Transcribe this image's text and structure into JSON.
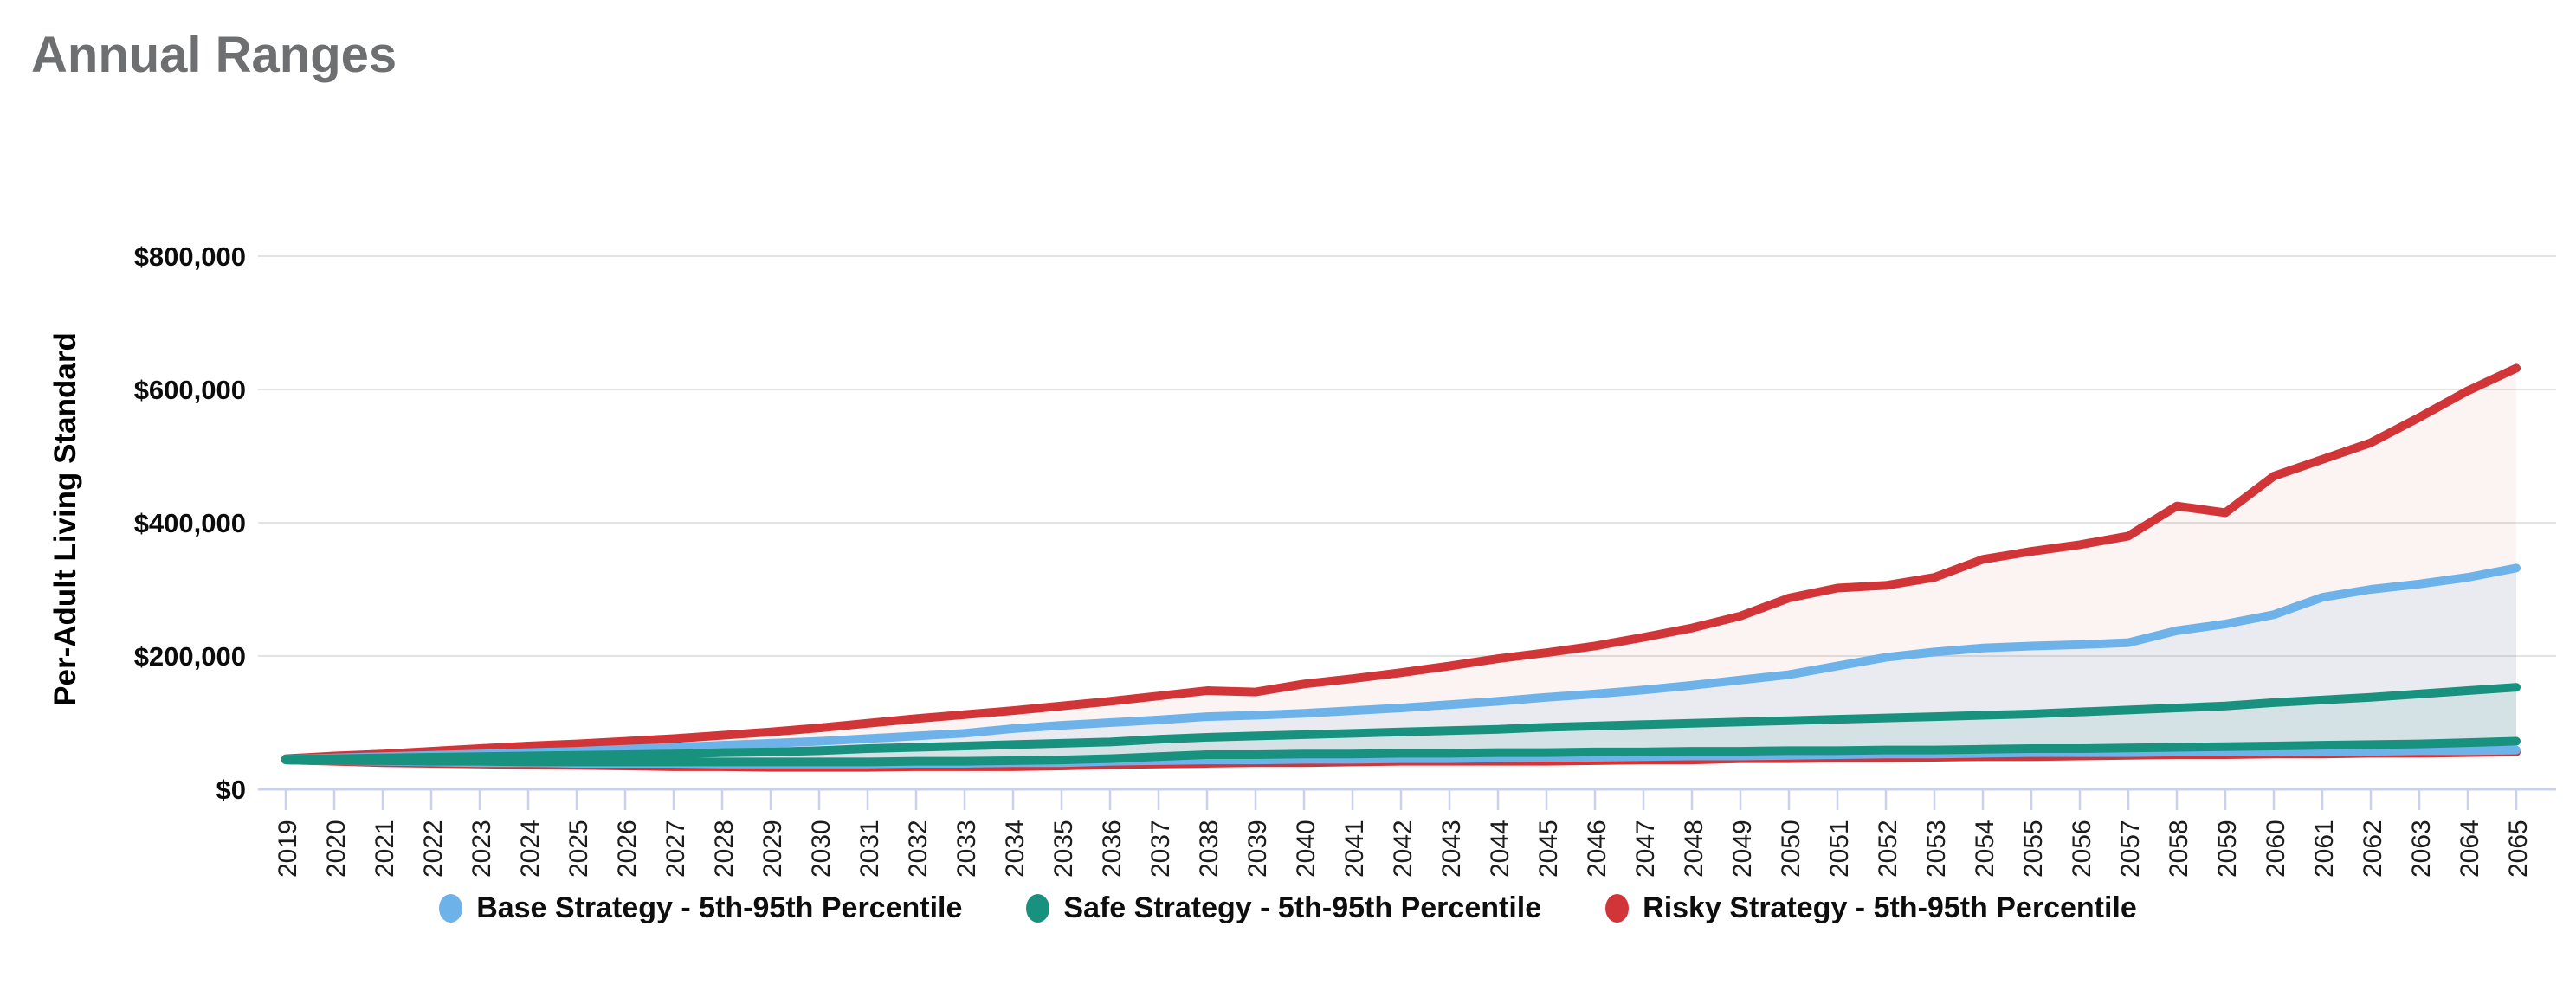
{
  "page": {
    "title": "Annual Ranges"
  },
  "chart_data": {
    "type": "area",
    "title": "Annual Ranges",
    "ylabel": "Per-Adult Living Standard",
    "xlabel": "",
    "ylim": [
      0,
      800000
    ],
    "grid": "horizontal",
    "legend_position": "bottom",
    "axis_color": "#c9d1ec",
    "grid_color": "#e3e3e3",
    "ytick_values": [
      0,
      200000,
      400000,
      600000,
      800000
    ],
    "ytick_labels": [
      "$0",
      "$200,000",
      "$400,000",
      "$600,000",
      "$800,000"
    ],
    "x": [
      2019,
      2020,
      2021,
      2022,
      2023,
      2024,
      2025,
      2026,
      2027,
      2028,
      2029,
      2030,
      2031,
      2032,
      2033,
      2034,
      2035,
      2036,
      2037,
      2038,
      2039,
      2040,
      2041,
      2042,
      2043,
      2044,
      2045,
      2046,
      2047,
      2048,
      2049,
      2050,
      2051,
      2052,
      2053,
      2054,
      2055,
      2056,
      2057,
      2058,
      2059,
      2060,
      2061,
      2062,
      2063,
      2064,
      2065
    ],
    "series": [
      {
        "name": "Base Strategy - 5th-95th Percentile",
        "color": "#6db3ea",
        "fill": "rgba(109,179,234,0.12)",
        "top": [
          45000,
          47000,
          49000,
          51000,
          53000,
          55000,
          57000,
          60000,
          63000,
          66000,
          69000,
          72000,
          76000,
          80000,
          84000,
          91000,
          96000,
          100000,
          104000,
          109000,
          111000,
          114000,
          118000,
          122000,
          127000,
          132000,
          138000,
          143000,
          149000,
          156000,
          164000,
          172000,
          185000,
          198000,
          206000,
          212000,
          215000,
          217000,
          220000,
          238000,
          248000,
          262000,
          288000,
          300000,
          308000,
          318000,
          332000
        ],
        "bottom": [
          44000,
          43000,
          42000,
          41000,
          40000,
          40000,
          39000,
          39000,
          39000,
          38000,
          38000,
          38000,
          38000,
          39000,
          39000,
          40000,
          40000,
          42000,
          43000,
          44000,
          44000,
          45000,
          45000,
          46000,
          46000,
          47000,
          48000,
          48000,
          49000,
          50000,
          50000,
          51000,
          52000,
          53000,
          53000,
          54000,
          55000,
          55000,
          55000,
          56000,
          56000,
          56000,
          57000,
          57000,
          58000,
          58000,
          59000
        ]
      },
      {
        "name": "Safe Strategy - 5th-95th Percentile",
        "color": "#18917e",
        "fill": "rgba(24,145,126,0.10)",
        "top": [
          45000,
          46000,
          47000,
          48000,
          49000,
          50000,
          51000,
          52000,
          53000,
          55000,
          56000,
          58000,
          61000,
          63000,
          65000,
          67000,
          69000,
          71000,
          75000,
          78000,
          80000,
          82000,
          84000,
          86000,
          88000,
          90000,
          93000,
          95000,
          97000,
          99000,
          101000,
          103000,
          105000,
          107000,
          109000,
          111000,
          113000,
          116000,
          119000,
          122000,
          125000,
          130000,
          134000,
          138000,
          143000,
          148000,
          153000
        ],
        "bottom": [
          44000,
          43000,
          43000,
          42000,
          42000,
          41000,
          41000,
          41000,
          41000,
          41000,
          41000,
          41000,
          41000,
          42000,
          42000,
          43000,
          44000,
          46000,
          49000,
          52000,
          52000,
          53000,
          53000,
          54000,
          54000,
          55000,
          55000,
          56000,
          56000,
          57000,
          57000,
          58000,
          58000,
          59000,
          59000,
          60000,
          61000,
          61000,
          62000,
          63000,
          64000,
          65000,
          66000,
          67000,
          68000,
          70000,
          72000
        ]
      },
      {
        "name": "Risky Strategy - 5th-95th Percentile",
        "color": "#d23538",
        "fill": "rgba(211,53,57,0.06)",
        "top": [
          46000,
          50000,
          53000,
          57000,
          61000,
          65000,
          68000,
          72000,
          76000,
          81000,
          86000,
          92000,
          99000,
          106000,
          112000,
          118000,
          125000,
          132000,
          140000,
          148000,
          146000,
          158000,
          166000,
          175000,
          185000,
          196000,
          205000,
          215000,
          228000,
          242000,
          260000,
          287000,
          302000,
          306000,
          318000,
          345000,
          357000,
          367000,
          380000,
          425000,
          415000,
          470000,
          495000,
          520000,
          558000,
          598000,
          632000
        ],
        "bottom": [
          44000,
          42000,
          40000,
          39000,
          38000,
          37000,
          36000,
          35000,
          34000,
          34000,
          33000,
          33000,
          33000,
          34000,
          34000,
          34000,
          35000,
          37000,
          38000,
          39000,
          40000,
          40000,
          41000,
          42000,
          42000,
          42000,
          42000,
          43000,
          44000,
          44000,
          46000,
          46000,
          47000,
          47000,
          48000,
          49000,
          49000,
          50000,
          51000,
          52000,
          52000,
          53000,
          53000,
          54000,
          54000,
          55000,
          56000
        ]
      }
    ]
  },
  "legend": {
    "items": [
      {
        "label": "Base Strategy - 5th-95th Percentile",
        "color": "#6db3ea"
      },
      {
        "label": "Safe Strategy - 5th-95th Percentile",
        "color": "#18917e"
      },
      {
        "label": "Risky Strategy - 5th-95th Percentile",
        "color": "#d23538"
      }
    ]
  }
}
